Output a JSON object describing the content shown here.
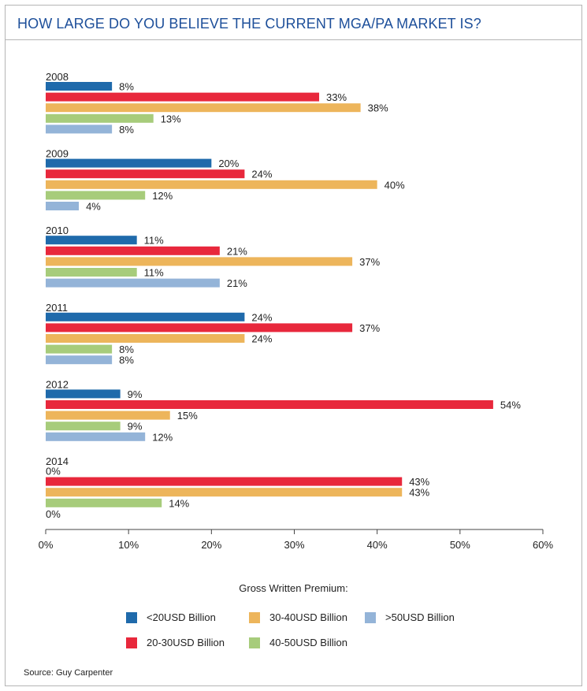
{
  "title": "HOW LARGE DO YOU BELIEVE THE CURRENT MGA/PA MARKET IS?",
  "source": "Source: Guy Carpenter",
  "legend": {
    "title": "Gross Written Premium:",
    "items": [
      {
        "label": "<20USD Billion",
        "color": "#1f6aab"
      },
      {
        "label": "20-30USD Billion",
        "color": "#e8283c"
      },
      {
        "label": "30-40USD Billion",
        "color": "#edb55b"
      },
      {
        "label": "40-50USD Billion",
        "color": "#a7cc7b"
      },
      {
        "label": ">50USD Billion",
        "color": "#94b4d8"
      }
    ]
  },
  "chart_data": {
    "type": "bar",
    "orientation": "horizontal",
    "title": "HOW LARGE DO YOU BELIEVE THE CURRENT MGA/PA MARKET IS?",
    "categories": [
      "2008",
      "2009",
      "2010",
      "2011",
      "2012",
      "2014"
    ],
    "xlim": [
      0,
      60
    ],
    "x_ticks": [
      "0%",
      "10%",
      "20%",
      "30%",
      "40%",
      "50%",
      "60%"
    ],
    "value_suffix": "%",
    "grid": false,
    "legend_placement": "bottom",
    "series": [
      {
        "name": "<20USD Billion",
        "color": "#1f6aab",
        "values": [
          8,
          20,
          11,
          24,
          9,
          0
        ]
      },
      {
        "name": "20-30USD Billion",
        "color": "#e8283c",
        "values": [
          33,
          24,
          21,
          37,
          54,
          43
        ]
      },
      {
        "name": "30-40USD Billion",
        "color": "#edb55b",
        "values": [
          38,
          40,
          37,
          24,
          15,
          43
        ]
      },
      {
        "name": "40-50USD Billion",
        "color": "#a7cc7b",
        "values": [
          13,
          12,
          11,
          8,
          9,
          14
        ]
      },
      {
        "name": ">50USD Billion",
        "color": "#94b4d8",
        "values": [
          8,
          4,
          21,
          8,
          12,
          0
        ]
      }
    ]
  }
}
